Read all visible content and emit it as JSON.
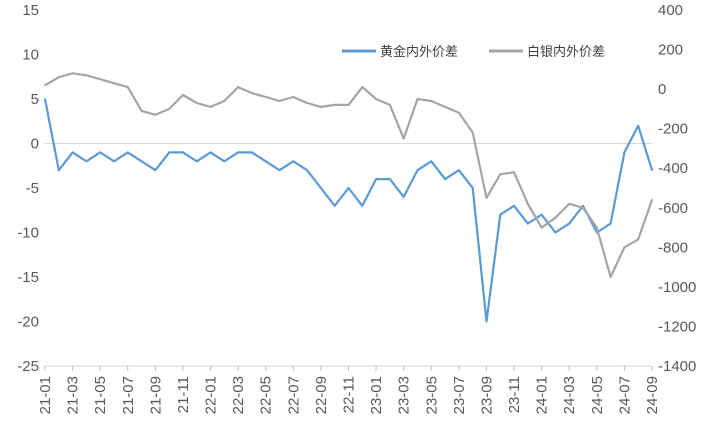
{
  "chart_data": {
    "type": "line",
    "legend_position": "top-right",
    "grid": false,
    "x_categories": [
      "21-01",
      "21-03",
      "21-05",
      "21-07",
      "21-09",
      "21-11",
      "22-01",
      "22-03",
      "22-05",
      "22-07",
      "22-09",
      "22-11",
      "23-01",
      "23-03",
      "23-05",
      "23-07",
      "23-09",
      "23-11",
      "24-01",
      "24-03",
      "24-05",
      "24-07",
      "24-09"
    ],
    "y_left": {
      "min": -25,
      "max": 15,
      "step": 5,
      "ticks": [
        "-25",
        "-20",
        "-15",
        "-10",
        "-5",
        "0",
        "5",
        "10",
        "15"
      ]
    },
    "y_right": {
      "min": -1400,
      "max": 400,
      "step": 200,
      "ticks": [
        "-1400",
        "-1200",
        "-1000",
        "-800",
        "-600",
        "-400",
        "-200",
        "0",
        "200",
        "400"
      ]
    },
    "series": [
      {
        "name": "黄金内外价差",
        "axis": "left",
        "color": "#5B9BD5",
        "x": [
          "21-01",
          "21-02",
          "21-03",
          "21-04",
          "21-05",
          "21-06",
          "21-07",
          "21-08",
          "21-09",
          "21-10",
          "21-11",
          "21-12",
          "22-01",
          "22-02",
          "22-03",
          "22-04",
          "22-05",
          "22-06",
          "22-07",
          "22-08",
          "22-09",
          "22-10",
          "22-11",
          "22-12",
          "23-01",
          "23-02",
          "23-03",
          "23-04",
          "23-05",
          "23-06",
          "23-07",
          "23-08",
          "23-09",
          "23-10",
          "23-11",
          "23-12",
          "24-01",
          "24-02",
          "24-03",
          "24-04",
          "24-05",
          "24-06",
          "24-07",
          "24-08",
          "24-09"
        ],
        "values": [
          5,
          -3,
          -1,
          -2,
          -1,
          -2,
          -1,
          -2,
          -3,
          -1,
          -1,
          -2,
          -1,
          -2,
          -1,
          -1,
          -2,
          -3,
          -2,
          -3,
          -5,
          -7,
          -5,
          -7,
          -4,
          -4,
          -6,
          -3,
          -2,
          -4,
          -3,
          -5,
          -20,
          -8,
          -7,
          -9,
          -8,
          -10,
          -9,
          -7,
          -10,
          -9,
          -1,
          2,
          -3
        ]
      },
      {
        "name": "白银内外价差",
        "axis": "right",
        "color": "#A5A5A5",
        "x": [
          "21-01",
          "21-02",
          "21-03",
          "21-04",
          "21-05",
          "21-06",
          "21-07",
          "21-08",
          "21-09",
          "21-10",
          "21-11",
          "21-12",
          "22-01",
          "22-02",
          "22-03",
          "22-04",
          "22-05",
          "22-06",
          "22-07",
          "22-08",
          "22-09",
          "22-10",
          "22-11",
          "22-12",
          "23-01",
          "23-02",
          "23-03",
          "23-04",
          "23-05",
          "23-06",
          "23-07",
          "23-08",
          "23-09",
          "23-10",
          "23-11",
          "23-12",
          "24-01",
          "24-02",
          "24-03",
          "24-04",
          "24-05",
          "24-06",
          "24-07",
          "24-08",
          "24-09"
        ],
        "values": [
          20,
          60,
          80,
          70,
          50,
          30,
          10,
          -110,
          -130,
          -100,
          -30,
          -70,
          -90,
          -60,
          10,
          -20,
          -40,
          -60,
          -40,
          -70,
          -90,
          -80,
          -80,
          10,
          -50,
          -80,
          -250,
          -50,
          -60,
          -90,
          -120,
          -220,
          -550,
          -430,
          -420,
          -580,
          -700,
          -650,
          -580,
          -600,
          -700,
          -950,
          -800,
          -760,
          -560
        ]
      }
    ]
  }
}
